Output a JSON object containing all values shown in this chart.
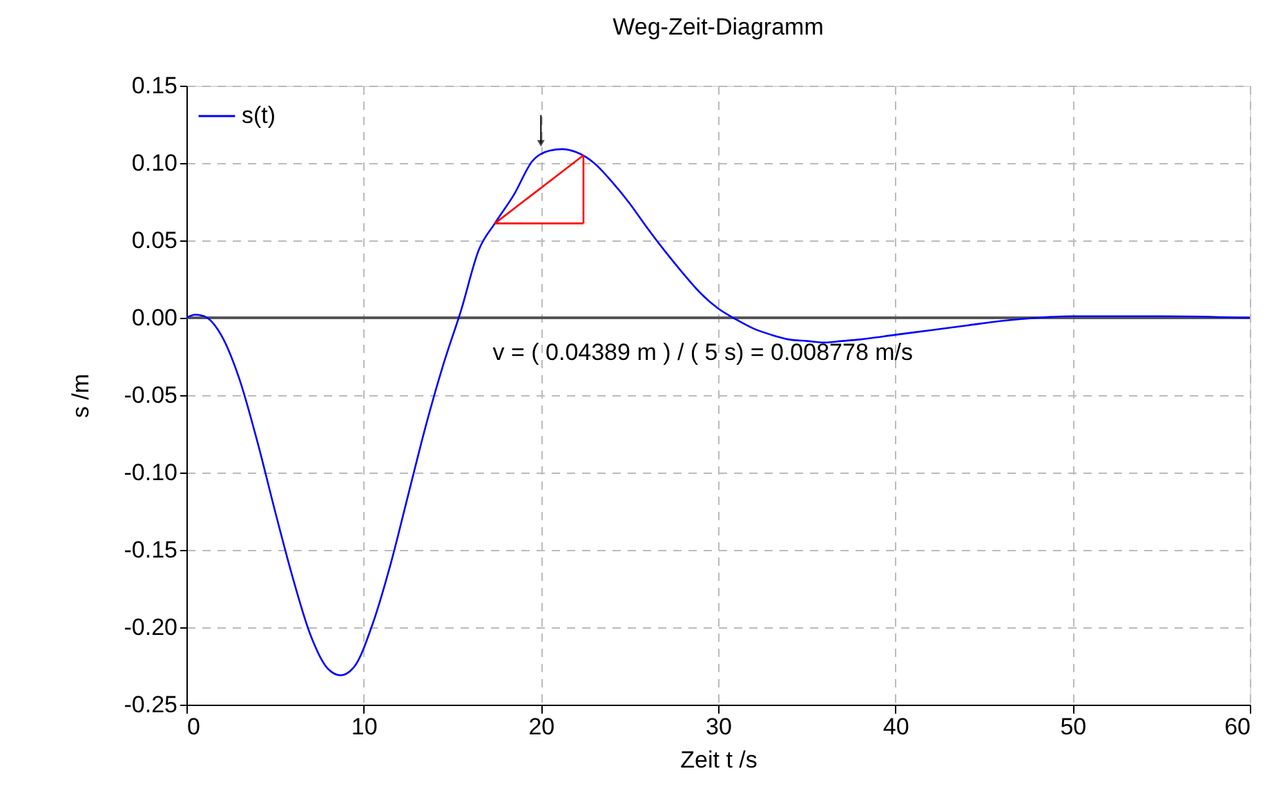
{
  "chart_data": {
    "type": "line",
    "title": "Weg-Zeit-Diagramm",
    "xlabel": "Zeit t /s",
    "ylabel": "s /m",
    "series": [
      {
        "name": "s(t)",
        "color": "#0000ff",
        "x": [
          0,
          0.5,
          1,
          2,
          3,
          4,
          5,
          6,
          7,
          8,
          8.7,
          9.5,
          10.5,
          11.5,
          12.5,
          13.5,
          14.5,
          15.5,
          16.5,
          17.4,
          18.5,
          19.5,
          20.5,
          21.2,
          22,
          23,
          24,
          25,
          26,
          27,
          28,
          29,
          30,
          31,
          32,
          33,
          34,
          35,
          36,
          37,
          38,
          40,
          42,
          44,
          46,
          48,
          50,
          52,
          55,
          60
        ],
        "values": [
          0,
          0.002,
          0.001,
          -0.012,
          -0.04,
          -0.08,
          -0.125,
          -0.168,
          -0.205,
          -0.227,
          -0.231,
          -0.225,
          -0.198,
          -0.16,
          -0.115,
          -0.07,
          -0.03,
          0.005,
          0.044,
          0.061,
          0.08,
          0.101,
          0.108,
          0.109,
          0.107,
          0.1,
          0.088,
          0.074,
          0.058,
          0.043,
          0.029,
          0.016,
          0.006,
          -0.001,
          -0.007,
          -0.011,
          -0.014,
          -0.015,
          -0.016,
          -0.015,
          -0.014,
          -0.011,
          -0.008,
          -0.005,
          -0.002,
          0.0,
          0.001,
          0.001,
          0.001,
          0
        ]
      },
      {
        "color": "#ff0000",
        "x": [
          17.4,
          22.4
        ],
        "values": [
          0.061,
          0.105
        ]
      },
      {
        "color": "#ff0000",
        "x": [
          17.4,
          22.4
        ],
        "values": [
          0.061,
          0.061
        ]
      },
      {
        "color": "#ff0000",
        "x": [
          22.4,
          22.4
        ],
        "values": [
          0.061,
          0.105
        ]
      }
    ],
    "xlim": [
      0,
      60
    ],
    "xticks": [
      0,
      10,
      20,
      30,
      40,
      50,
      60
    ],
    "ylim": [
      -0.25,
      0.15
    ],
    "yticks": [
      {
        "value": -0.25,
        "label": "-0.25"
      },
      {
        "value": -0.2,
        "label": "-0.20"
      },
      {
        "value": -0.15,
        "label": "-0.15"
      },
      {
        "value": -0.1,
        "label": "-0.10"
      },
      {
        "value": -0.05,
        "label": "-0.05"
      },
      {
        "value": 0,
        "label": "0.00"
      },
      {
        "value": 0.05,
        "label": "0.05"
      },
      {
        "value": 0.1,
        "label": "0.10"
      },
      {
        "value": 0.15,
        "label": "0.15"
      }
    ],
    "ref_lines": [
      {
        "axis": "y",
        "value": 0,
        "color": "#555555"
      }
    ],
    "annotations": [
      "v = (   0.04389 m ) / (        5 s) =   0.008778 m/s"
    ],
    "grid": true,
    "legend": "top left",
    "line_style": "solid"
  }
}
